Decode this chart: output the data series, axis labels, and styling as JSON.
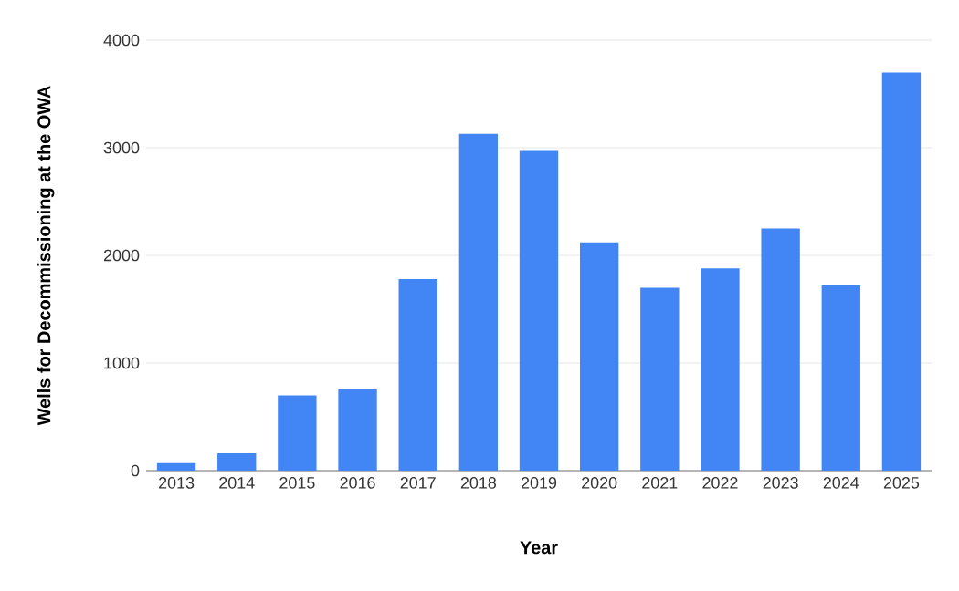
{
  "chart_data": {
    "type": "bar",
    "xlabel": "Year",
    "ylabel": "Wells for Decommissioning at the OWA",
    "categories": [
      "2013",
      "2014",
      "2015",
      "2016",
      "2017",
      "2018",
      "2019",
      "2020",
      "2021",
      "2022",
      "2023",
      "2024",
      "2025"
    ],
    "values": [
      70,
      160,
      700,
      760,
      1780,
      3130,
      2970,
      2120,
      1700,
      1880,
      2250,
      1720,
      3700
    ],
    "color": "#4285f4",
    "ylim": [
      0,
      4000
    ],
    "yticks": [
      0,
      1000,
      2000,
      3000,
      4000
    ],
    "grid": "y"
  }
}
